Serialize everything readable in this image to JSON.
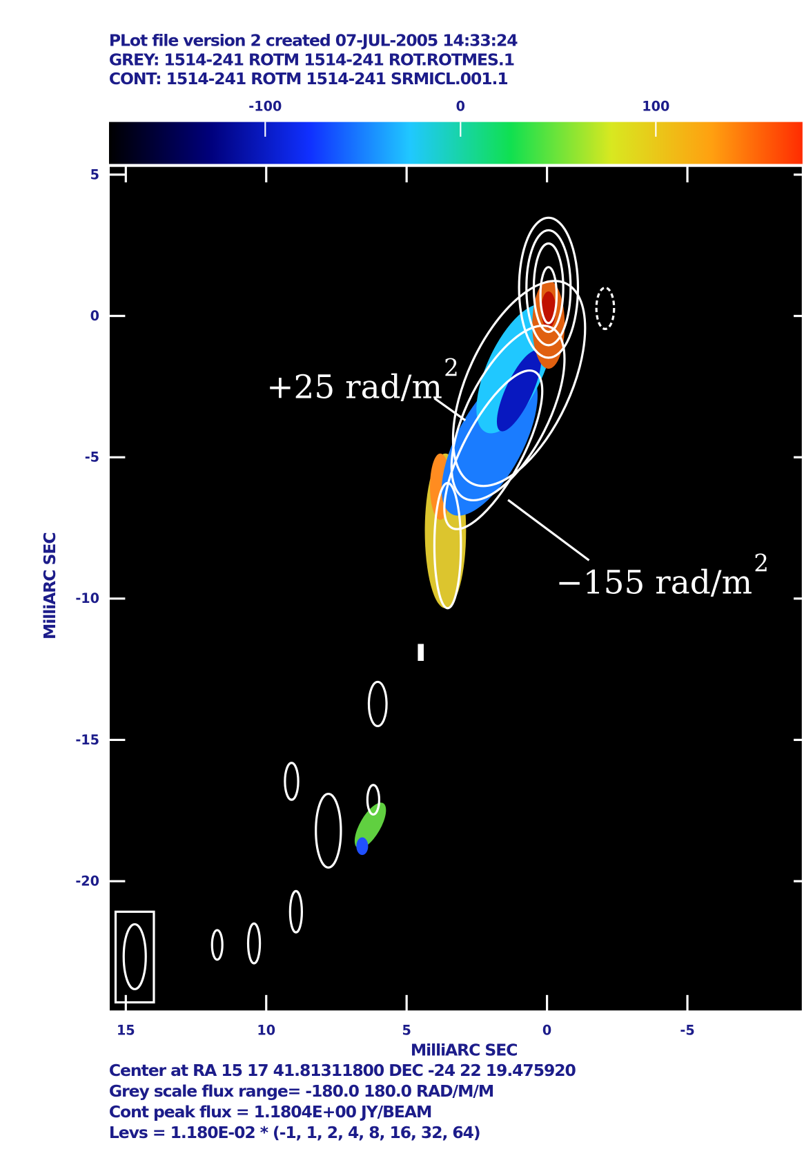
{
  "chart_data": {
    "type": "image",
    "header": [
      "PLot file version 2  created 07-JUL-2005 14:33:24",
      "GREY: 1514-241  ROTM  1514-241 ROT.ROTMES.1",
      "CONT: 1514-241  ROTM  1514-241 SRMICL.001.1"
    ],
    "colorbar": {
      "lim": [
        -180,
        180
      ],
      "ticks": [
        -100,
        0,
        100
      ],
      "colors": [
        "#000000",
        "#00007a",
        "#1030ff",
        "#20c8ff",
        "#10e050",
        "#d8e820",
        "#ffa010",
        "#ff2000"
      ]
    },
    "xlabel": "MilliARC SEC",
    "ylabel": "MilliARC SEC",
    "xlim": [
      15.6,
      -9.1
    ],
    "ylim": [
      -24.6,
      5.3
    ],
    "xticks": [
      15,
      10,
      5,
      0,
      -5
    ],
    "yticks": [
      5,
      0,
      -5,
      -10,
      -15,
      -20
    ],
    "annotations": [
      {
        "text": "+25 rad/m",
        "superscript": "2"
      },
      {
        "text": "−155 rad/m",
        "superscript": "2"
      }
    ],
    "footer": [
      "Center at RA 15 17 41.81311800  DEC -24 22 19.475920",
      "Grey scale flux range= -180.0 180.0 RAD/M/M",
      "Cont peak flux =  1.1804E+00 JY/BEAM",
      "Levs = 1.180E-02 * (-1, 1, 2, 4, 8, 16, 32, 64)"
    ]
  }
}
